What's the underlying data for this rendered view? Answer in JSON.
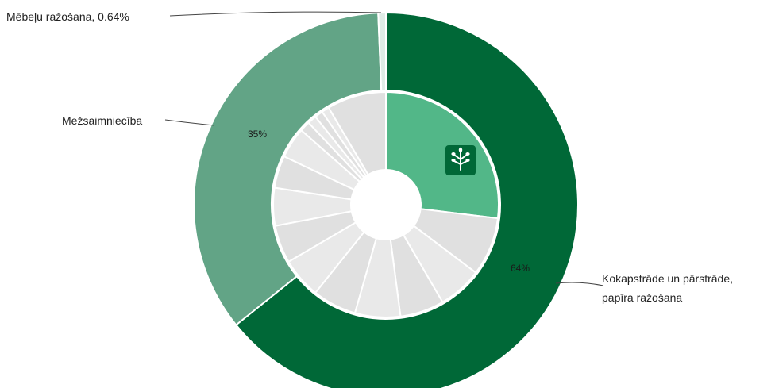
{
  "chart_data": {
    "type": "pie",
    "subtype": "nested-donut",
    "outer_ring": [
      {
        "label": "Kokapstrāde un pārstrāde, papīra ražošana",
        "label_lines": [
          "Kokapstrāde un pārstrāde,",
          "papīra ražošana"
        ],
        "value": 64,
        "value_label": "64%",
        "color": "#006837"
      },
      {
        "label": "Mežsaimniecība",
        "label_lines": [
          "Mežsaimniecība"
        ],
        "value": 35,
        "value_label": "35%",
        "color": "#62a486"
      },
      {
        "label": "Mēbeļu ražošana, 0.64%",
        "label_lines": [
          "Mēbeļu ražošana, 0.64%"
        ],
        "value": 0.64,
        "value_label": "",
        "color": "#dfece6"
      }
    ],
    "inner_ring": {
      "highlight": {
        "value": 27.3,
        "color": "#52b788",
        "icon": "tree-branch-icon"
      },
      "rest": [
        8.5,
        6.4,
        6.4,
        6.6,
        6.4,
        5.9,
        5.5,
        5.5,
        4.7,
        4.5,
        1.5,
        1.3,
        1.2,
        1.1,
        8.6
      ],
      "rest_colors": [
        "#e0e0e0",
        "#e9e9e9"
      ]
    },
    "start_angle_deg": 0,
    "direction": "clockwise"
  }
}
